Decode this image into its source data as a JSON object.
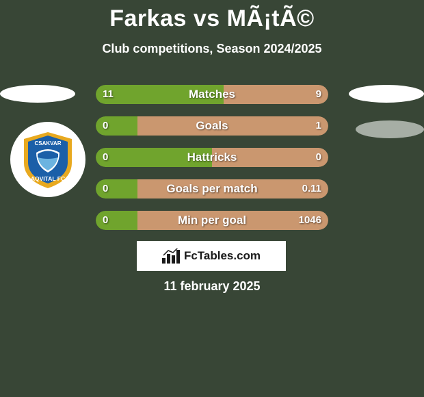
{
  "title": "Farkas vs MÃ¡tÃ©",
  "subtitle": "Club competitions, Season 2024/2025",
  "date": "11 february 2025",
  "brand": "FcTables.com",
  "colors": {
    "background": "#384636",
    "left_bar": "#70a42d",
    "right_bar": "#ca976f",
    "text": "#ffffff",
    "ellipse_light": "#ffffff",
    "ellipse_grey": "#a6aea5"
  },
  "club1": {
    "name_top": "CSAKVAR",
    "name_bottom": "AQVITAL FC",
    "badge_colors": {
      "outer": "#e8a91f",
      "inner": "#1b5fa8",
      "text": "#ffffff"
    }
  },
  "bars": [
    {
      "label": "Matches",
      "left_val": "11",
      "right_val": "9",
      "left_pct": 55,
      "right_pct": 45
    },
    {
      "label": "Goals",
      "left_val": "0",
      "right_val": "1",
      "left_pct": 18,
      "right_pct": 82
    },
    {
      "label": "Hattricks",
      "left_val": "0",
      "right_val": "0",
      "left_pct": 50,
      "right_pct": 50
    },
    {
      "label": "Goals per match",
      "left_val": "0",
      "right_val": "0.11",
      "left_pct": 18,
      "right_pct": 82
    },
    {
      "label": "Min per goal",
      "left_val": "0",
      "right_val": "1046",
      "left_pct": 18,
      "right_pct": 82
    }
  ]
}
